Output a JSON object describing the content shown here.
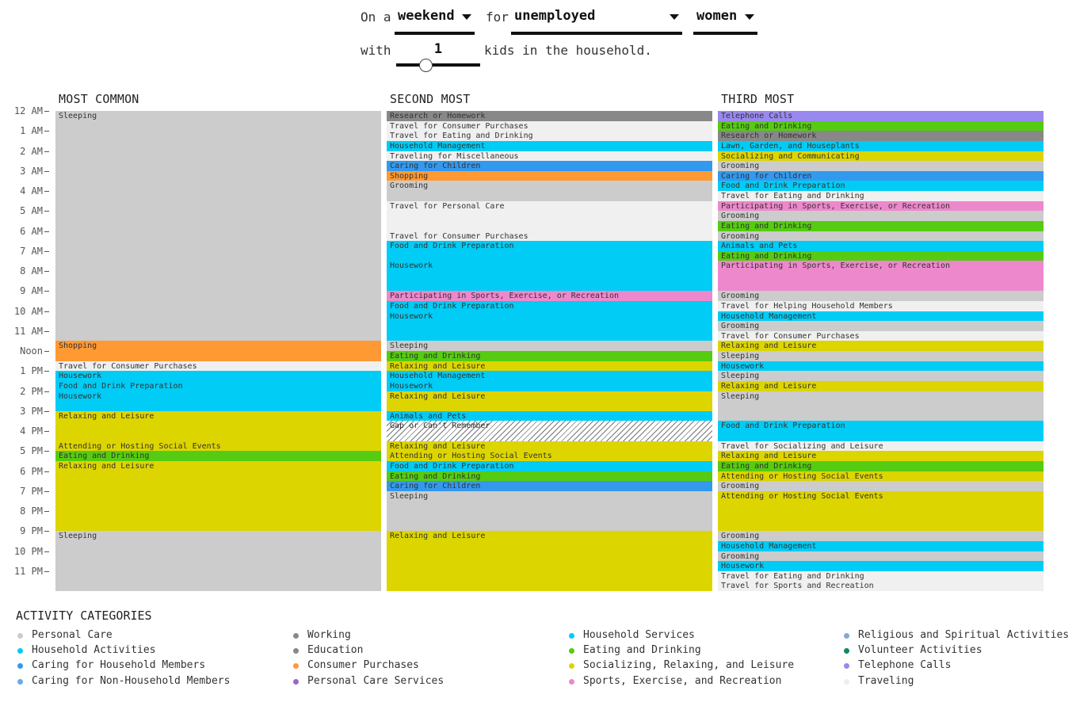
{
  "controls": {
    "line1": {
      "prefix": "On a",
      "mid": "for"
    },
    "day": "weekend",
    "employment": "unemployed",
    "sex": "women",
    "line2": {
      "prefix": "with",
      "suffix": "kids in the household."
    },
    "kids": "1",
    "kids_slider_fraction": 0.35
  },
  "axis_labels": [
    "12 AM",
    "1 AM",
    "2 AM",
    "3 AM",
    "4 AM",
    "5 AM",
    "6 AM",
    "7 AM",
    "8 AM",
    "9 AM",
    "10 AM",
    "11 AM",
    "Noon",
    "1 PM",
    "2 PM",
    "3 PM",
    "4 PM",
    "5 PM",
    "6 PM",
    "7 PM",
    "8 PM",
    "9 PM",
    "10 PM",
    "11 PM"
  ],
  "columns": [
    {
      "title": "MOST COMMON",
      "blocks": [
        {
          "start": 0,
          "end": 69,
          "activity": "Sleeping",
          "color": "#cccccc"
        },
        {
          "start": 69,
          "end": 75,
          "activity": "Shopping",
          "color": "#ff9933"
        },
        {
          "start": 75,
          "end": 78,
          "activity": "Travel for Consumer Purchases",
          "color": "#f0f0f0"
        },
        {
          "start": 78,
          "end": 81,
          "activity": "Housework",
          "color": "#00ccf5"
        },
        {
          "start": 81,
          "end": 84,
          "activity": "Food and Drink Preparation",
          "color": "#00ccf5"
        },
        {
          "start": 84,
          "end": 90,
          "activity": "Housework",
          "color": "#00ccf5"
        },
        {
          "start": 90,
          "end": 99,
          "activity": "Relaxing and Leisure",
          "color": "#ddd500"
        },
        {
          "start": 99,
          "end": 102,
          "activity": "Attending or Hosting Social Events",
          "color": "#ddd500"
        },
        {
          "start": 102,
          "end": 105,
          "activity": "Eating and Drinking",
          "color": "#55cc11"
        },
        {
          "start": 105,
          "end": 126,
          "activity": "Relaxing and Leisure",
          "color": "#ddd500"
        },
        {
          "start": 126,
          "end": 144,
          "activity": "Sleeping",
          "color": "#cccccc"
        }
      ]
    },
    {
      "title": "SECOND MOST",
      "blocks": [
        {
          "start": 0,
          "end": 3,
          "activity": "Research or Homework",
          "color": "#888888"
        },
        {
          "start": 3,
          "end": 6,
          "activity": "Travel for Consumer Purchases",
          "color": "#f0f0f0"
        },
        {
          "start": 6,
          "end": 9,
          "activity": "Travel for Eating and Drinking",
          "color": "#f0f0f0"
        },
        {
          "start": 9,
          "end": 12,
          "activity": "Household Management",
          "color": "#00ccf5"
        },
        {
          "start": 12,
          "end": 15,
          "activity": "Traveling for Miscellaneous",
          "color": "#f0f0f0"
        },
        {
          "start": 15,
          "end": 18,
          "activity": "Caring for Children",
          "color": "#3399ee"
        },
        {
          "start": 18,
          "end": 21,
          "activity": "Shopping",
          "color": "#ff9933"
        },
        {
          "start": 21,
          "end": 27,
          "activity": "Grooming",
          "color": "#cccccc"
        },
        {
          "start": 27,
          "end": 36,
          "activity": "Travel for Personal Care",
          "color": "#f0f0f0"
        },
        {
          "start": 36,
          "end": 39,
          "activity": "Travel for Consumer Purchases",
          "color": "#f0f0f0"
        },
        {
          "start": 39,
          "end": 45,
          "activity": "Food and Drink Preparation",
          "color": "#00ccf5"
        },
        {
          "start": 45,
          "end": 54,
          "activity": "Housework",
          "color": "#00ccf5"
        },
        {
          "start": 54,
          "end": 57,
          "activity": "Participating in Sports, Exercise, or Recreation",
          "color": "#ee88cc"
        },
        {
          "start": 57,
          "end": 60,
          "activity": "Food and Drink Preparation",
          "color": "#00ccf5"
        },
        {
          "start": 60,
          "end": 69,
          "activity": "Housework",
          "color": "#00ccf5"
        },
        {
          "start": 69,
          "end": 72,
          "activity": "Sleeping",
          "color": "#cccccc"
        },
        {
          "start": 72,
          "end": 75,
          "activity": "Eating and Drinking",
          "color": "#55cc11"
        },
        {
          "start": 75,
          "end": 78,
          "activity": "Relaxing and Leisure",
          "color": "#ddd500"
        },
        {
          "start": 78,
          "end": 81,
          "activity": "Household Management",
          "color": "#00ccf5"
        },
        {
          "start": 81,
          "end": 84,
          "activity": "Housework",
          "color": "#00ccf5"
        },
        {
          "start": 84,
          "end": 90,
          "activity": "Relaxing and Leisure",
          "color": "#ddd500"
        },
        {
          "start": 90,
          "end": 93,
          "activity": "Animals and Pets",
          "color": "#00ccf5"
        },
        {
          "start": 93,
          "end": 99,
          "activity": "Gap or Can't Remember",
          "color": "hatch"
        },
        {
          "start": 99,
          "end": 102,
          "activity": "Relaxing and Leisure",
          "color": "#ddd500"
        },
        {
          "start": 102,
          "end": 105,
          "activity": "Attending or Hosting Social Events",
          "color": "#ddd500"
        },
        {
          "start": 105,
          "end": 108,
          "activity": "Food and Drink Preparation",
          "color": "#00ccf5"
        },
        {
          "start": 108,
          "end": 111,
          "activity": "Eating and Drinking",
          "color": "#55cc11"
        },
        {
          "start": 111,
          "end": 114,
          "activity": "Caring for Children",
          "color": "#3399ee"
        },
        {
          "start": 114,
          "end": 126,
          "activity": "Sleeping",
          "color": "#cccccc"
        },
        {
          "start": 126,
          "end": 144,
          "activity": "Relaxing and Leisure",
          "color": "#ddd500"
        }
      ]
    },
    {
      "title": "THIRD MOST",
      "blocks": [
        {
          "start": 0,
          "end": 3,
          "activity": "Telephone Calls",
          "color": "#9988ee"
        },
        {
          "start": 3,
          "end": 6,
          "activity": "Eating and Drinking",
          "color": "#55cc11"
        },
        {
          "start": 6,
          "end": 9,
          "activity": "Research or Homework",
          "color": "#888888"
        },
        {
          "start": 9,
          "end": 12,
          "activity": "Lawn, Garden, and Houseplants",
          "color": "#00ccf5"
        },
        {
          "start": 12,
          "end": 15,
          "activity": "Socializing and Communicating",
          "color": "#ddd500"
        },
        {
          "start": 15,
          "end": 18,
          "activity": "Grooming",
          "color": "#cccccc"
        },
        {
          "start": 18,
          "end": 21,
          "activity": "Caring for Children",
          "color": "#3399ee"
        },
        {
          "start": 21,
          "end": 24,
          "activity": "Food and Drink Preparation",
          "color": "#00ccf5"
        },
        {
          "start": 24,
          "end": 27,
          "activity": "Travel for Eating and Drinking",
          "color": "#f0f0f0"
        },
        {
          "start": 27,
          "end": 30,
          "activity": "Participating in Sports, Exercise, or Recreation",
          "color": "#ee88cc"
        },
        {
          "start": 30,
          "end": 33,
          "activity": "Grooming",
          "color": "#cccccc"
        },
        {
          "start": 33,
          "end": 36,
          "activity": "Eating and Drinking",
          "color": "#55cc11"
        },
        {
          "start": 36,
          "end": 39,
          "activity": "Grooming",
          "color": "#cccccc"
        },
        {
          "start": 39,
          "end": 42,
          "activity": "Animals and Pets",
          "color": "#00ccf5"
        },
        {
          "start": 42,
          "end": 45,
          "activity": "Eating and Drinking",
          "color": "#55cc11"
        },
        {
          "start": 45,
          "end": 54,
          "activity": "Participating in Sports, Exercise, or Recreation",
          "color": "#ee88cc"
        },
        {
          "start": 54,
          "end": 57,
          "activity": "Grooming",
          "color": "#cccccc"
        },
        {
          "start": 57,
          "end": 60,
          "activity": "Travel for Helping Household Members",
          "color": "#f0f0f0"
        },
        {
          "start": 60,
          "end": 63,
          "activity": "Household Management",
          "color": "#00ccf5"
        },
        {
          "start": 63,
          "end": 66,
          "activity": "Grooming",
          "color": "#cccccc"
        },
        {
          "start": 66,
          "end": 69,
          "activity": "Travel for Consumer Purchases",
          "color": "#f0f0f0"
        },
        {
          "start": 69,
          "end": 72,
          "activity": "Relaxing and Leisure",
          "color": "#ddd500"
        },
        {
          "start": 72,
          "end": 75,
          "activity": "Sleeping",
          "color": "#cccccc"
        },
        {
          "start": 75,
          "end": 78,
          "activity": "Housework",
          "color": "#00ccf5"
        },
        {
          "start": 78,
          "end": 81,
          "activity": "Sleeping",
          "color": "#cccccc"
        },
        {
          "start": 81,
          "end": 84,
          "activity": "Relaxing and Leisure",
          "color": "#ddd500"
        },
        {
          "start": 84,
          "end": 93,
          "activity": "Sleeping",
          "color": "#cccccc"
        },
        {
          "start": 93,
          "end": 99,
          "activity": "Food and Drink Preparation",
          "color": "#00ccf5"
        },
        {
          "start": 99,
          "end": 102,
          "activity": "Travel for Socializing and Leisure",
          "color": "#f0f0f0"
        },
        {
          "start": 102,
          "end": 105,
          "activity": "Relaxing and Leisure",
          "color": "#ddd500"
        },
        {
          "start": 105,
          "end": 108,
          "activity": "Eating and Drinking",
          "color": "#55cc11"
        },
        {
          "start": 108,
          "end": 111,
          "activity": "Attending or Hosting Social Events",
          "color": "#ddd500"
        },
        {
          "start": 111,
          "end": 114,
          "activity": "Grooming",
          "color": "#cccccc"
        },
        {
          "start": 114,
          "end": 126,
          "activity": "Attending or Hosting Social Events",
          "color": "#ddd500"
        },
        {
          "start": 126,
          "end": 129,
          "activity": "Grooming",
          "color": "#cccccc"
        },
        {
          "start": 129,
          "end": 132,
          "activity": "Household Management",
          "color": "#00ccf5"
        },
        {
          "start": 132,
          "end": 135,
          "activity": "Grooming",
          "color": "#cccccc"
        },
        {
          "start": 135,
          "end": 138,
          "activity": "Housework",
          "color": "#00ccf5"
        },
        {
          "start": 138,
          "end": 141,
          "activity": "Travel for Eating and Drinking",
          "color": "#f0f0f0"
        },
        {
          "start": 141,
          "end": 144,
          "activity": "Travel for Sports and Recreation",
          "color": "#f0f0f0"
        }
      ]
    }
  ],
  "legend": {
    "title": "ACTIVITY CATEGORIES",
    "columns": [
      [
        {
          "label": "Personal Care",
          "color": "#cccccc"
        },
        {
          "label": "Household Activities",
          "color": "#00ccf5"
        },
        {
          "label": "Caring for Household Members",
          "color": "#3399ee"
        },
        {
          "label": "Caring for Non-Household Members",
          "color": "#66aaee"
        }
      ],
      [
        {
          "label": "Working",
          "color": "#888888"
        },
        {
          "label": "Education",
          "color": "#888888"
        },
        {
          "label": "Consumer Purchases",
          "color": "#ff9933"
        },
        {
          "label": "Personal Care Services",
          "color": "#9966cc"
        }
      ],
      [
        {
          "label": "Household Services",
          "color": "#00ccf5"
        },
        {
          "label": "Eating and Drinking",
          "color": "#55cc11"
        },
        {
          "label": "Socializing, Relaxing, and Leisure",
          "color": "#ddd500"
        },
        {
          "label": "Sports, Exercise, and Recreation",
          "color": "#ee88cc"
        }
      ],
      [
        {
          "label": "Religious and Spiritual Activities",
          "color": "#88aacc"
        },
        {
          "label": "Volunteer Activities",
          "color": "#118866"
        },
        {
          "label": "Telephone Calls",
          "color": "#9988ee"
        },
        {
          "label": "Traveling",
          "color": "#eeeeee"
        }
      ]
    ]
  }
}
